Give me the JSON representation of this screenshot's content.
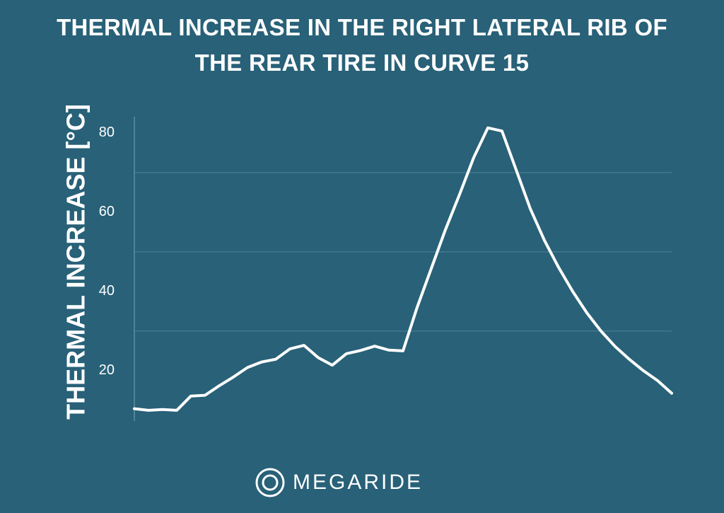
{
  "chart_data": {
    "type": "line",
    "title": "THERMAL INCREASE IN THE RIGHT LATERAL RIB OF THE REAR TIRE IN CURVE 15",
    "y_label": "THERMAL INCREASE [°C]",
    "brand": "MEGARIDE",
    "color": "#ffffff",
    "values": [
      10.4,
      10,
      10.2,
      10,
      13.6,
      13.8,
      16.2,
      18.4,
      20.8,
      22.2,
      22.9,
      25.5,
      26.4,
      23.3,
      21.4,
      24.3,
      25.1,
      26.2,
      25.2,
      25,
      36,
      45.8,
      55.6,
      64.5,
      73.8,
      81.3,
      80.5,
      70.7,
      60.9,
      52.9,
      46.1,
      40,
      34.6,
      30,
      26.1,
      22.9,
      20,
      17.5,
      14.3
    ],
    "ylim": [
      7.3,
      84.1
    ],
    "yticks": [
      20,
      40,
      60,
      80
    ],
    "ygrid": [
      30,
      50,
      70
    ],
    "grid": true
  }
}
